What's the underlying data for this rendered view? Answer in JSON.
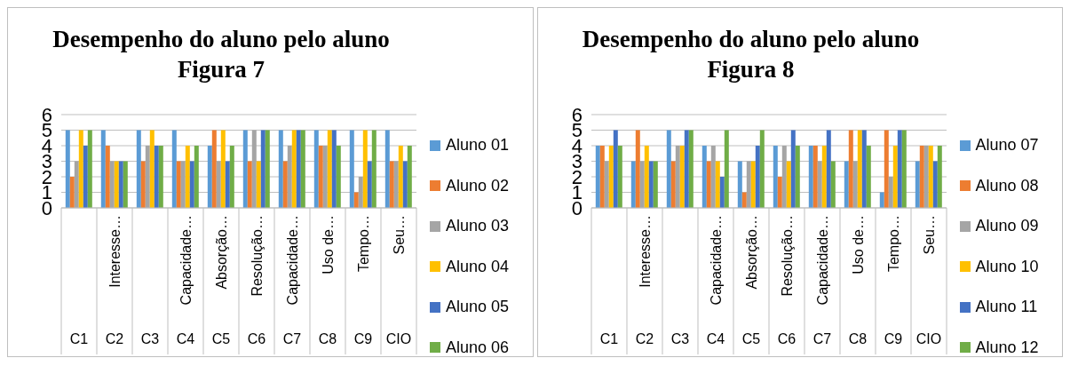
{
  "chart_data": [
    {
      "type": "bar",
      "title": "Desempenho do aluno pelo aluno\nFigura 7",
      "categories": [
        null,
        "Interesse…",
        null,
        "Capacidade…",
        "Absorção…",
        "Resolução…",
        "Capacidade…",
        "Uso de…",
        "Tempo…",
        "Seu…"
      ],
      "annotations": [
        "C1",
        "C2",
        "C3",
        "C4",
        "C5",
        "C6",
        "C7",
        "C8",
        "C9",
        "CIO"
      ],
      "series": [
        {
          "name": "Aluno 01",
          "color": "#5b9bd5",
          "values": [
            5,
            5,
            5,
            5,
            4,
            5,
            5,
            5,
            5,
            5
          ]
        },
        {
          "name": "Aluno 02",
          "color": "#ed7d31",
          "values": [
            2,
            4,
            3,
            3,
            5,
            3,
            3,
            4,
            1,
            3
          ]
        },
        {
          "name": "Aluno 03",
          "color": "#a5a5a5",
          "values": [
            3,
            3,
            4,
            3,
            3,
            5,
            4,
            4,
            2,
            3
          ]
        },
        {
          "name": "Aluno 04",
          "color": "#ffc000",
          "values": [
            5,
            3,
            5,
            4,
            5,
            3,
            5,
            5,
            5,
            4
          ]
        },
        {
          "name": "Aluno 05",
          "color": "#4472c4",
          "values": [
            4,
            3,
            4,
            3,
            3,
            5,
            5,
            5,
            3,
            3
          ]
        },
        {
          "name": "Aluno 06",
          "color": "#70ad47",
          "values": [
            5,
            3,
            4,
            4,
            4,
            5,
            5,
            4,
            5,
            4
          ]
        }
      ],
      "ylim": [
        0,
        6
      ],
      "yticks": [
        0,
        1,
        2,
        3,
        4,
        5,
        6
      ],
      "grid": "y",
      "legend": "right"
    },
    {
      "type": "bar",
      "title": "Desempenho do aluno pelo aluno\nFigura 8",
      "categories": [
        null,
        "Interesse…",
        null,
        "Capacidade…",
        "Absorção…",
        "Resolução…",
        "Capacidade…",
        "Uso de…",
        "Tempo…",
        "Seu…"
      ],
      "annotations": [
        "C1",
        "C2",
        "C3",
        "C4",
        "C5",
        "C6",
        "C7",
        "C8",
        "C9",
        "CIO"
      ],
      "series": [
        {
          "name": "Aluno 07",
          "color": "#5b9bd5",
          "values": [
            4,
            3,
            5,
            4,
            3,
            4,
            4,
            3,
            1,
            3
          ]
        },
        {
          "name": "Aluno 08",
          "color": "#ed7d31",
          "values": [
            4,
            5,
            3,
            3,
            1,
            2,
            4,
            5,
            5,
            4
          ]
        },
        {
          "name": "Aluno 09",
          "color": "#a5a5a5",
          "values": [
            3,
            3,
            4,
            4,
            3,
            4,
            3,
            3,
            2,
            4
          ]
        },
        {
          "name": "Aluno 10",
          "color": "#ffc000",
          "values": [
            4,
            4,
            4,
            3,
            3,
            3,
            4,
            5,
            4,
            4
          ]
        },
        {
          "name": "Aluno 11",
          "color": "#4472c4",
          "values": [
            5,
            3,
            5,
            2,
            4,
            5,
            5,
            5,
            5,
            3
          ]
        },
        {
          "name": "Aluno 12",
          "color": "#70ad47",
          "values": [
            4,
            3,
            5,
            5,
            5,
            4,
            3,
            4,
            5,
            4
          ]
        }
      ],
      "ylim": [
        0,
        6
      ],
      "yticks": [
        0,
        1,
        2,
        3,
        4,
        5,
        6
      ],
      "grid": "y",
      "legend": "right"
    }
  ]
}
